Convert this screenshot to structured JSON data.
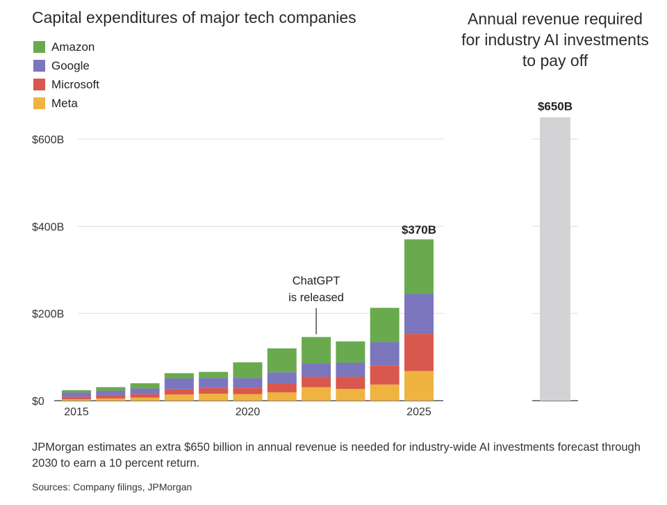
{
  "left_title": "Capital expenditures of major tech companies",
  "right_title_lines": [
    "Annual revenue required",
    "for industry AI investments",
    "to pay off"
  ],
  "footnote": "JPMorgan estimates an extra $650 billion in annual revenue is needed for industry-wide AI investments forecast through 2030 to earn a 10 percent return.",
  "sources": "Sources: Company filings, JPMorgan",
  "colors": {
    "Amazon": "#6aaa4f",
    "Google": "#7b76bd",
    "Microsoft": "#d9584d",
    "Meta": "#efb33f",
    "required": "#d3d3d5",
    "grid": "#dddddd",
    "axis": "#333333"
  },
  "chart_data": [
    {
      "type": "bar",
      "stacked": true,
      "title": "Capital expenditures of major tech companies",
      "categories": [
        "2015",
        "2016",
        "2017",
        "2018",
        "2019",
        "2020",
        "2021",
        "2022",
        "2023",
        "2024",
        "2025"
      ],
      "series": [
        {
          "name": "Meta",
          "values": [
            3,
            5,
            7,
            14,
            16,
            15,
            19,
            31,
            27,
            37,
            68
          ]
        },
        {
          "name": "Microsoft",
          "values": [
            6,
            8,
            8,
            12,
            13,
            15,
            21,
            24,
            28,
            44,
            85
          ]
        },
        {
          "name": "Google",
          "values": [
            10,
            10,
            13,
            25,
            23,
            22,
            25,
            31,
            32,
            53,
            92
          ]
        },
        {
          "name": "Amazon",
          "values": [
            5,
            8,
            12,
            12,
            14,
            36,
            55,
            60,
            49,
            79,
            125
          ]
        }
      ],
      "totals_label": {
        "category": "2025",
        "text": "$370B"
      },
      "xtick_labels": [
        "2015",
        "2020",
        "2025"
      ],
      "ytick_values": [
        0,
        200,
        400,
        600
      ],
      "ytick_labels": [
        "$0",
        "$200B",
        "$400B",
        "$600B"
      ],
      "ylim": [
        0,
        700
      ],
      "annotation": {
        "category": "2022",
        "lines": [
          "ChatGPT",
          "is released"
        ]
      },
      "legend": [
        "Amazon",
        "Google",
        "Microsoft",
        "Meta"
      ],
      "legend_position": "top-left"
    },
    {
      "type": "bar",
      "title": "Annual revenue required for industry AI investments to pay off",
      "categories": [
        "Required revenue"
      ],
      "values": [
        650
      ],
      "value_label": "$650B",
      "ylim": [
        0,
        700
      ]
    }
  ]
}
